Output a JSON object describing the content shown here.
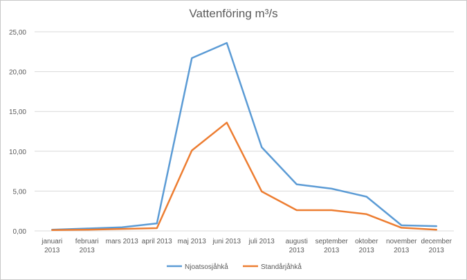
{
  "chart_data": {
    "type": "line",
    "title": "Vattenföring m³/s",
    "xlabel": "",
    "ylabel": "",
    "categories": [
      [
        "januari",
        "2013"
      ],
      [
        "februari",
        "2013"
      ],
      [
        "mars 2013"
      ],
      [
        "april 2013"
      ],
      [
        "maj 2013"
      ],
      [
        "juni 2013"
      ],
      [
        "juli 2013"
      ],
      [
        "augusti",
        "2013"
      ],
      [
        "september",
        "2013"
      ],
      [
        "oktober",
        "2013"
      ],
      [
        "november",
        "2013"
      ],
      [
        "december",
        "2013"
      ]
    ],
    "yticks": [
      "0,00",
      "5,00",
      "10,00",
      "15,00",
      "20,00",
      "25,00"
    ],
    "ylim": [
      0,
      25
    ],
    "grid": true,
    "legend_position": "bottom",
    "series": [
      {
        "name": "Njoatsosjåhkå",
        "color": "#5b9bd5",
        "values": [
          0.15,
          0.3,
          0.45,
          0.95,
          21.7,
          23.6,
          10.5,
          5.85,
          5.3,
          4.3,
          0.7,
          0.6
        ]
      },
      {
        "name": "Standårjåhkå",
        "color": "#ed7d31",
        "values": [
          0.1,
          0.15,
          0.25,
          0.35,
          10.1,
          13.6,
          4.95,
          2.6,
          2.6,
          2.1,
          0.4,
          0.15
        ]
      }
    ]
  }
}
